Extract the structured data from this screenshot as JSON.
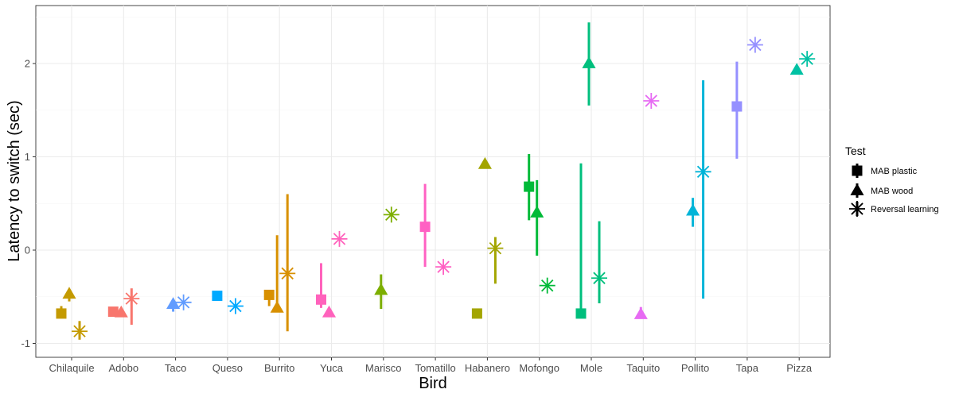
{
  "chart_data": {
    "type": "scatter",
    "title": "",
    "xlabel": "Bird",
    "ylabel": "Latency to switch (sec)",
    "categories": [
      "Chilaquile",
      "Adobo",
      "Taco",
      "Queso",
      "Burrito",
      "Yuca",
      "Marisco",
      "Tomatillo",
      "Habanero",
      "Mofongo",
      "Mole",
      "Taquito",
      "Pollito",
      "Tapa",
      "Pizza"
    ],
    "ylim": [
      -1.15,
      2.5
    ],
    "yticks": [
      -1,
      0,
      1,
      2
    ],
    "grid": true,
    "legend": {
      "title": "Test",
      "position": "right"
    },
    "bird_colors": [
      "#C49A00",
      "#F8766D",
      "#619CFF",
      "#00A9FF",
      "#D89000",
      "#FF62BC",
      "#7CAE00",
      "#FF61C3",
      "#A3A500",
      "#00BA38",
      "#00BF7D",
      "#E76BF3",
      "#00B4D8",
      "#9590FF",
      "#00C1A3"
    ],
    "series": [
      {
        "name": "MAB plastic",
        "shape": "square",
        "values": [
          -0.68,
          -0.66,
          null,
          -0.49,
          -0.48,
          -0.53,
          null,
          0.25,
          -0.68,
          0.68,
          -0.68,
          null,
          null,
          1.54,
          null
        ],
        "err_low": [
          -0.7,
          null,
          null,
          null,
          -0.6,
          -0.62,
          null,
          -0.18,
          null,
          0.32,
          -0.68,
          null,
          null,
          0.98,
          null
        ],
        "err_high": [
          -0.6,
          null,
          null,
          null,
          -0.48,
          -0.14,
          null,
          0.71,
          null,
          1.03,
          0.93,
          null,
          null,
          2.02,
          null
        ]
      },
      {
        "name": "MAB wood",
        "shape": "triangle",
        "values": [
          -0.47,
          -0.67,
          -0.58,
          null,
          -0.62,
          -0.67,
          -0.43,
          null,
          0.92,
          0.4,
          2.0,
          -0.69,
          0.42,
          null,
          1.93
        ],
        "err_low": [
          -0.55,
          null,
          -0.66,
          null,
          -0.65,
          null,
          -0.63,
          null,
          null,
          -0.06,
          1.55,
          -0.69,
          0.25,
          null,
          null
        ],
        "err_high": [
          null,
          null,
          null,
          null,
          0.16,
          null,
          -0.26,
          null,
          null,
          0.75,
          2.44,
          -0.61,
          0.56,
          null,
          null
        ]
      },
      {
        "name": "Reversal learning",
        "shape": "asterisk",
        "values": [
          -0.87,
          -0.52,
          -0.56,
          -0.6,
          -0.25,
          0.12,
          0.38,
          -0.18,
          0.02,
          -0.38,
          -0.3,
          1.6,
          0.84,
          2.2,
          2.05
        ],
        "err_low": [
          -0.96,
          -0.8,
          null,
          null,
          -0.87,
          null,
          null,
          null,
          -0.36,
          null,
          -0.57,
          null,
          -0.52,
          null,
          null
        ],
        "err_high": [
          -0.76,
          -0.41,
          null,
          null,
          0.6,
          null,
          null,
          null,
          0.14,
          null,
          0.31,
          null,
          1.82,
          null,
          null
        ]
      }
    ]
  }
}
